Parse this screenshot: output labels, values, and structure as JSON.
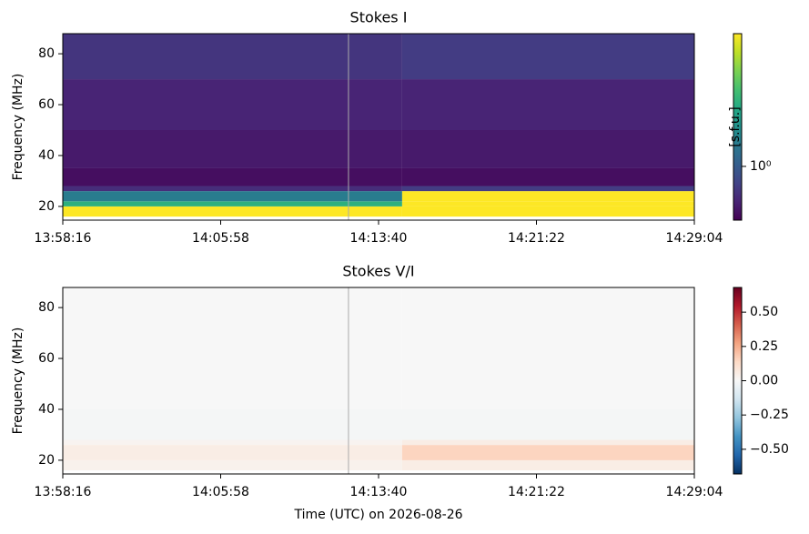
{
  "chart_data": [
    {
      "type": "heatmap",
      "title": "Stokes I",
      "ylabel": "Frequency (MHz)",
      "colorbar_label": "[s.f.u.]",
      "colormap": "viridis",
      "colorbar_scale": "log",
      "clim": [
        0.4,
        9.6
      ],
      "colorbar_ticks": [
        {
          "value": 1,
          "label": "10⁰"
        }
      ],
      "xlim": [
        50296,
        52144
      ],
      "xticks": [
        {
          "value": 50296,
          "label": "13:58:16"
        },
        {
          "value": 50758,
          "label": "14:05:58"
        },
        {
          "value": 51220,
          "label": "14:13:40"
        },
        {
          "value": 51682,
          "label": "14:21:22"
        },
        {
          "value": 52144,
          "label": "14:29:04"
        }
      ],
      "ylim": [
        14.6,
        87.9
      ],
      "yticks": [
        20,
        40,
        60,
        80
      ],
      "xbins": [
        50296,
        51289,
        52144
      ],
      "ybins": [
        14.6,
        16,
        20,
        22,
        26,
        28,
        35,
        50,
        70,
        87.9
      ],
      "values": [
        [
          null,
          null
        ],
        [
          9.6,
          9.6
        ],
        [
          3,
          9.6
        ],
        [
          1.5,
          9.6
        ],
        [
          0.6,
          0.7
        ],
        [
          0.45,
          0.45
        ],
        [
          0.5,
          0.5
        ],
        [
          0.55,
          0.55
        ],
        [
          0.65,
          0.7
        ]
      ],
      "vline": 51132
    },
    {
      "type": "heatmap",
      "title": "Stokes V/I",
      "ylabel": "Frequency (MHz)",
      "xlabel": "Time (UTC) on 2026-08-26",
      "colormap": "RdBu_r",
      "colorbar_scale": "linear",
      "clim": [
        -0.68,
        0.68
      ],
      "colorbar_ticks": [
        {
          "value": -0.5,
          "label": "−0.50"
        },
        {
          "value": -0.25,
          "label": "−0.25"
        },
        {
          "value": 0,
          "label": "0.00"
        },
        {
          "value": 0.25,
          "label": "0.25"
        },
        {
          "value": 0.5,
          "label": "0.50"
        }
      ],
      "xlim": [
        50296,
        52144
      ],
      "xticks": [
        {
          "value": 50296,
          "label": "13:58:16"
        },
        {
          "value": 50758,
          "label": "14:05:58"
        },
        {
          "value": 51220,
          "label": "14:13:40"
        },
        {
          "value": 51682,
          "label": "14:21:22"
        },
        {
          "value": 52144,
          "label": "14:29:04"
        }
      ],
      "ylim": [
        14.6,
        87.9
      ],
      "yticks": [
        20,
        40,
        60,
        80
      ],
      "xbins": [
        50296,
        51289,
        52144
      ],
      "ybins": [
        14.6,
        16,
        20,
        26,
        28,
        40,
        87.9
      ],
      "values": [
        [
          null,
          null
        ],
        [
          0.03,
          0.05
        ],
        [
          0.05,
          0.15
        ],
        [
          0.02,
          0.05
        ],
        [
          -0.01,
          -0.01
        ],
        [
          0,
          0
        ]
      ],
      "vline": 51132
    }
  ]
}
